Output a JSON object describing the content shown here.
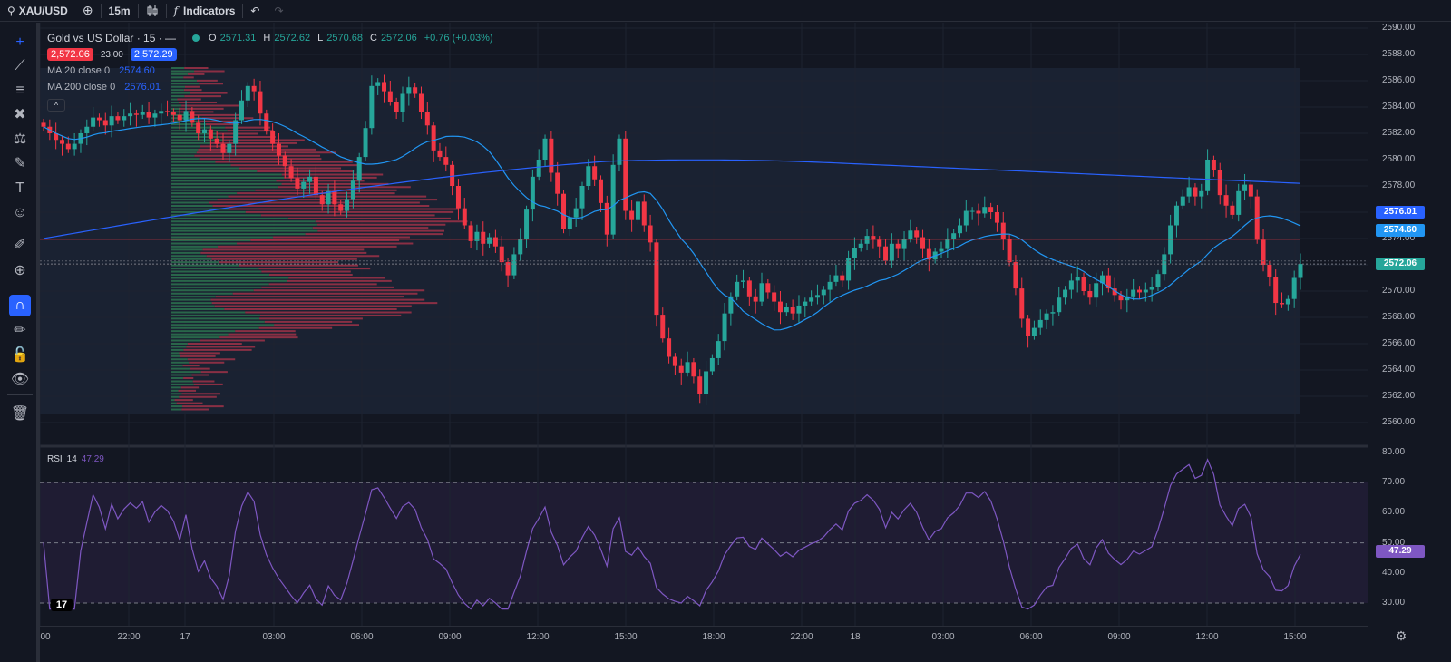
{
  "topbar": {
    "symbol": "XAU/USD",
    "add_symbol_icon": "plus-circle-icon",
    "interval": "15m",
    "chart_type_icon": "candles-icon",
    "indicators_icon": "fx-icon",
    "indicators_label": "Indicators",
    "undo_icon": "undo-icon",
    "redo_icon": "redo-icon"
  },
  "toolbar": {
    "tools": [
      "crosshair-icon",
      "trend-line-icon",
      "horizontal-lines-icon",
      "pattern-icon",
      "fib-icon",
      "brush-icon",
      "text-icon",
      "emoji-icon",
      "ruler-icon",
      "zoom-in-icon",
      "magnet-icon",
      "lock-pencil-icon",
      "lock-icon",
      "eye-icon",
      "trash-icon"
    ]
  },
  "legend": {
    "title": "Gold vs US Dollar · 15 · —",
    "o_label": "O",
    "o_value": "2571.31",
    "h_label": "H",
    "h_value": "2572.62",
    "l_label": "L",
    "l_value": "2570.68",
    "c_label": "C",
    "c_value": "2572.06",
    "change": "+0.76 (+0.03%)",
    "sell_price": "2,572.06",
    "spread": "23.00",
    "buy_price": "2,572.29",
    "ma20_label": "MA 20 close 0",
    "ma20_value": "2574.60",
    "ma200_label": "MA 200 close 0",
    "ma200_value": "2576.01",
    "collapse_symbol": "^"
  },
  "rsi_legend": {
    "label": "RSI",
    "period": "14",
    "value": "47.29"
  },
  "price_axis": {
    "labels": [
      "2590.00",
      "2588.00",
      "2586.00",
      "2584.00",
      "2582.00",
      "2580.00",
      "2578.00",
      "2576.00",
      "2574.00",
      "2572.00",
      "2570.00",
      "2568.00",
      "2566.00",
      "2564.00",
      "2562.00",
      "2560.00"
    ],
    "ma200_tag": "2576.01",
    "ma20_tag": "2574.60",
    "last_tag": "2572.06",
    "rsi_labels": [
      "80.00",
      "70.00",
      "60.00",
      "50.00",
      "40.00",
      "30.00"
    ],
    "rsi_tag": "47.29"
  },
  "time_axis": {
    "labels": [
      "00",
      "22:00",
      "17",
      "03:00",
      "06:00",
      "09:00",
      "12:00",
      "15:00",
      "18:00",
      "22:00",
      "18",
      "03:00",
      "06:00",
      "09:00",
      "12:00",
      "15:00"
    ]
  },
  "colors": {
    "up": "#26a69a",
    "down": "#f23645",
    "ma20": "#2196f3",
    "ma200": "#2962ff",
    "rsi": "#7e57c2",
    "hline": "#f23645"
  },
  "chart_data": {
    "type": "candlestick",
    "instrument": "Gold vs US Dollar",
    "ylim": [
      2560,
      2590
    ],
    "closes": [
      2582.5,
      2582.0,
      2581.5,
      2581.2,
      2580.8,
      2581.2,
      2582.0,
      2582.5,
      2583.2,
      2583.0,
      2582.6,
      2583.3,
      2583.0,
      2583.3,
      2583.5,
      2583.4,
      2583.6,
      2583.2,
      2583.5,
      2583.7,
      2583.6,
      2583.4,
      2583.0,
      2583.7,
      2582.8,
      2582.0,
      2582.3,
      2581.6,
      2581.2,
      2580.5,
      2581.2,
      2583.0,
      2584.5,
      2585.6,
      2585.2,
      2583.5,
      2582.2,
      2581.2,
      2580.3,
      2579.5,
      2578.6,
      2577.8,
      2578.3,
      2578.7,
      2577.3,
      2576.6,
      2577.6,
      2576.6,
      2576.1,
      2577.0,
      2578.4,
      2580.2,
      2582.4,
      2585.6,
      2585.9,
      2585.2,
      2584.4,
      2583.6,
      2585.0,
      2585.5,
      2585.0,
      2583.6,
      2582.6,
      2580.7,
      2580.2,
      2579.6,
      2578.0,
      2576.3,
      2575.0,
      2573.8,
      2574.5,
      2573.6,
      2574.1,
      2573.4,
      2572.2,
      2571.2,
      2572.8,
      2574.0,
      2576.2,
      2578.7,
      2580.0,
      2581.6,
      2579.0,
      2577.4,
      2574.7,
      2575.6,
      2576.3,
      2578.0,
      2579.5,
      2578.5,
      2576.7,
      2574.3,
      2579.6,
      2581.6,
      2576.1,
      2575.4,
      2576.8,
      2575.0,
      2573.7,
      2568.2,
      2566.4,
      2565.0,
      2564.3,
      2563.8,
      2564.6,
      2563.5,
      2562.2,
      2563.9,
      2564.9,
      2566.2,
      2568.3,
      2569.6,
      2570.7,
      2570.8,
      2569.6,
      2569.2,
      2570.6,
      2569.9,
      2569.2,
      2568.4,
      2568.8,
      2568.3,
      2568.9,
      2569.2,
      2569.5,
      2569.7,
      2570.1,
      2570.7,
      2571.2,
      2570.8,
      2572.5,
      2573.3,
      2573.6,
      2574.2,
      2573.9,
      2573.4,
      2572.3,
      2573.6,
      2573.2,
      2574.0,
      2574.6,
      2574.1,
      2573.2,
      2572.4,
      2573.0,
      2573.2,
      2574.0,
      2574.4,
      2575.0,
      2576.1,
      2576.1,
      2575.9,
      2576.4,
      2576.0,
      2575.2,
      2574.0,
      2572.2,
      2570.2,
      2567.9,
      2566.6,
      2567.2,
      2567.8,
      2568.3,
      2568.4,
      2569.5,
      2570.1,
      2570.8,
      2571.1,
      2570.0,
      2569.5,
      2570.6,
      2571.2,
      2570.2,
      2569.7,
      2569.3,
      2569.6,
      2570.1,
      2569.9,
      2570.1,
      2570.3,
      2571.3,
      2572.8,
      2575.0,
      2576.5,
      2577.2,
      2577.9,
      2577.2,
      2577.6,
      2580.0,
      2579.2,
      2577.3,
      2576.5,
      2575.8,
      2577.6,
      2578.1,
      2577.2,
      2573.9,
      2572.0,
      2571.1,
      2569.1,
      2569.0,
      2569.4,
      2571.0,
      2572.06
    ]
  }
}
